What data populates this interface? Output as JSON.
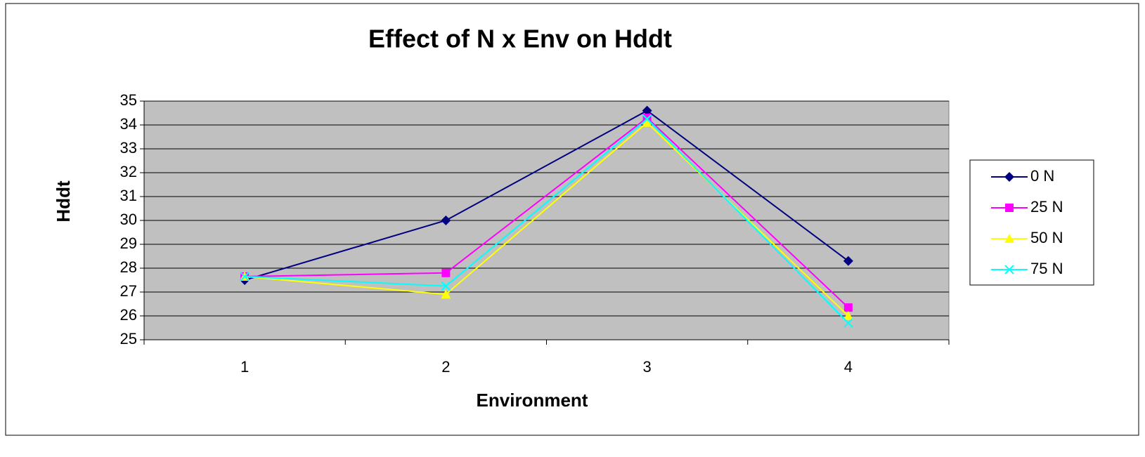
{
  "chart_data": {
    "type": "line",
    "title": "Effect of N x Env on Hddt",
    "x_label": "Environment",
    "y_label": "Hddt",
    "categories": [
      "1",
      "2",
      "3",
      "4"
    ],
    "series": [
      {
        "name": "0 N",
        "color": "#000080",
        "marker": "diamond",
        "values": [
          27.5,
          30.0,
          34.6,
          28.3
        ]
      },
      {
        "name": "25 N",
        "color": "#ff00ff",
        "marker": "square",
        "values": [
          27.65,
          27.8,
          34.3,
          26.35
        ]
      },
      {
        "name": "50 N",
        "color": "#ffff00",
        "marker": "triangle",
        "values": [
          27.65,
          26.9,
          34.1,
          26.0
        ]
      },
      {
        "name": "75 N",
        "color": "#00ffff",
        "marker": "x",
        "values": [
          27.65,
          27.25,
          34.25,
          25.7
        ]
      }
    ],
    "ylim": [
      25,
      35
    ],
    "yticks": [
      25,
      26,
      27,
      28,
      29,
      30,
      31,
      32,
      33,
      34,
      35
    ],
    "grid": true,
    "legend": "right"
  }
}
